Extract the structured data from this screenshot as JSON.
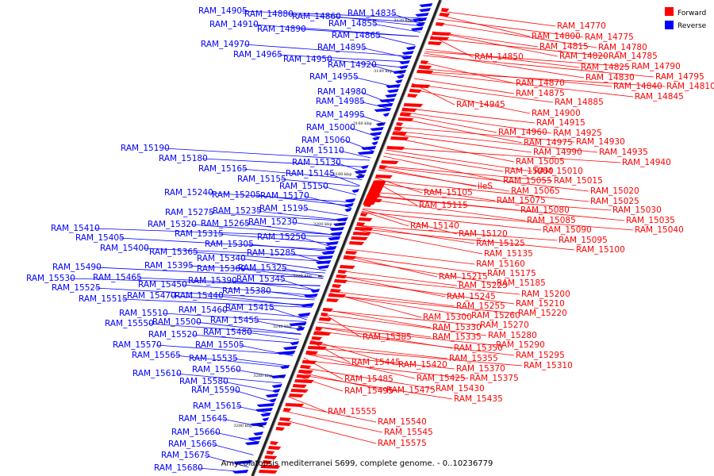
{
  "caption": "Amycolatopsis mediterranei S699, complete genome. - 0..10236779",
  "legend": [
    {
      "label": "Forward",
      "color": "#ff0000"
    },
    {
      "label": "Reverse",
      "color": "#0000ff"
    }
  ],
  "colors": {
    "forward": "#ff0000",
    "reverse": "#0000ff",
    "axis": "#000000"
  },
  "ticks": [
    "3120 kbp",
    "3140 kbp",
    "3160 kbp",
    "3180 kbp",
    "3200 kbp",
    "3220 kbp",
    "3240 kbp",
    "3260 kbp",
    "3280 kbp"
  ],
  "reverse_labels": [
    "RAM_14905",
    "RAM_14880",
    "RAM_14860",
    "RAM_14835",
    "RAM_14910",
    "RAM_14890",
    "RAM_14855",
    "RAM_14865",
    "RAM_14895",
    "RAM_14970",
    "RAM_14965",
    "RAM_14950",
    "RAM_14920",
    "RAM_14955",
    "RAM_14980",
    "RAM_14985",
    "RAM_14995",
    "RAM_15000",
    "RAM_15060",
    "RAM_15190",
    "RAM_15110",
    "RAM_15180",
    "RAM_15130",
    "RAM_15165",
    "RAM_15145",
    "RAM_15155",
    "RAM_15150",
    "RAM_15240",
    "RAM_15205",
    "RAM_15170",
    "RAM_15195",
    "RAM_15275",
    "RAM_15235",
    "RAM_15320",
    "RAM_15265",
    "RAM_15230",
    "RAM_15410",
    "RAM_15315",
    "RAM_15250",
    "RAM_15405",
    "RAM_15305",
    "RAM_15400",
    "RAM_15365",
    "RAM_15285",
    "RAM_15340",
    "RAM_15395",
    "RAM_15325",
    "RAM_15360",
    "RAM_15490",
    "RAM_15345",
    "RAM_15530",
    "RAM_15465",
    "RAM_15390",
    "RAM_15450",
    "RAM_15525",
    "RAM_15380",
    "RAM_15515",
    "RAM_15470",
    "RAM_15440",
    "RAM_15415",
    "RAM_15460",
    "RAM_15510",
    "RAM_15455",
    "RAM_15550",
    "RAM_15500",
    "RAM_15480",
    "RAM_15520",
    "RAM_15570",
    "RAM_15505",
    "RAM_15565",
    "RAM_15535",
    "RAM_15560",
    "RAM_15610",
    "RAM_15580",
    "RAM_15590",
    "RAM_15615",
    "RAM_15645",
    "RAM_15660",
    "RAM_15665",
    "RAM_15675",
    "RAM_15680"
  ],
  "forward_labels": [
    "RAM_14770",
    "RAM_14775",
    "RAM_14800",
    "RAM_14780",
    "RAM_14815",
    "RAM_14785",
    "RAM_14850",
    "RAM_14820",
    "RAM_14790",
    "RAM_14825",
    "RAM_14795",
    "RAM_14830",
    "RAM_14810",
    "RAM_14840",
    "RAM_14870",
    "RAM_14845",
    "RAM_14875",
    "RAM_14885",
    "RAM_14945",
    "RAM_14900",
    "RAM_14915",
    "RAM_14960",
    "RAM_14925",
    "RAM_14975",
    "RAM_14930",
    "RAM_14990",
    "RAM_14935",
    "RAM_15005",
    "RAM_14940",
    "RAM_15050",
    "RAM_15010",
    "RAM_15055",
    "RAM_15015",
    "ileS",
    "RAM_15065",
    "RAM_15020",
    "RAM_15105",
    "RAM_15075",
    "RAM_15025",
    "RAM_15115",
    "RAM_15080",
    "RAM_15030",
    "RAM_15085",
    "RAM_15035",
    "RAM_15140",
    "RAM_15090",
    "RAM_15040",
    "RAM_15120",
    "RAM_15095",
    "RAM_15125",
    "RAM_15100",
    "RAM_15135",
    "RAM_15160",
    "RAM_15175",
    "RAM_15215",
    "RAM_15185",
    "RAM_15225",
    "RAM_15200",
    "RAM_15245",
    "RAM_15210",
    "RAM_15255",
    "RAM_15220",
    "RAM_15260",
    "RAM_15300",
    "RAM_15270",
    "RAM_15330",
    "RAM_15280",
    "RAM_15385",
    "RAM_15335",
    "RAM_15290",
    "RAM_15350",
    "RAM_15295",
    "RAM_15355",
    "RAM_15310",
    "RAM_15445",
    "RAM_15420",
    "RAM_15370",
    "RAM_15375",
    "RAM_15485",
    "RAM_15425",
    "RAM_15495",
    "RAM_15475",
    "RAM_15430",
    "RAM_15435",
    "RAM_15555",
    "RAM_15540",
    "RAM_15545",
    "RAM_15575"
  ]
}
